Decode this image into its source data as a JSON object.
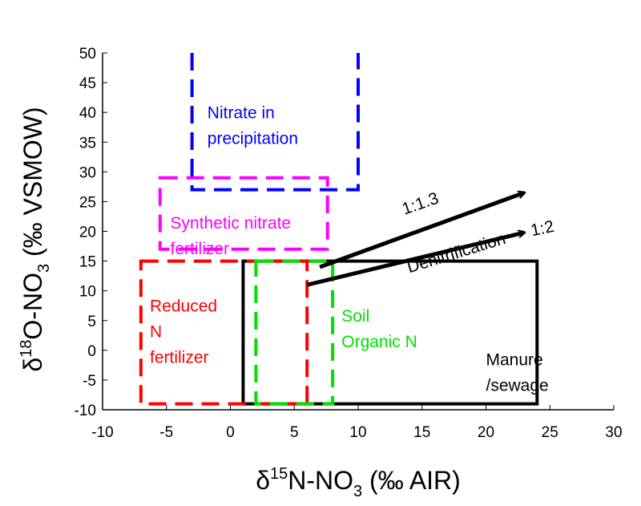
{
  "chart_data": {
    "type": "diagram-boxes",
    "xlim": [
      -10,
      30
    ],
    "ylim": [
      -10,
      50
    ],
    "x_ticks": [
      -10,
      -5,
      0,
      5,
      10,
      15,
      20,
      25,
      30
    ],
    "y_ticks": [
      -10,
      -5,
      0,
      5,
      10,
      15,
      20,
      25,
      30,
      35,
      40,
      45,
      50
    ],
    "xlabel": {
      "delta": "δ",
      "sup": "15",
      "main": "N-NO",
      "sub": "3",
      "tail": " (‰ AIR)"
    },
    "ylabel": {
      "delta": "δ",
      "sup": "18",
      "main": "O-NO",
      "sub": "3",
      "tail": " (‰ VSMOW)"
    },
    "grid": false,
    "regions": [
      {
        "name": "Manure /sewage",
        "lines": [
          "Manure",
          "/sewage"
        ],
        "x": [
          1,
          24
        ],
        "y": [
          -9,
          15
        ],
        "color": "#000000",
        "style": "solid",
        "label_at": [
          20,
          -2.5
        ]
      },
      {
        "name": "Reduced N fertilizer",
        "lines": [
          "Reduced",
          "N",
          "fertilizer"
        ],
        "x": [
          -7,
          6
        ],
        "y": [
          -9,
          15
        ],
        "color": "#ff0000",
        "style": "dashed",
        "label_at": [
          -6.3,
          6.5
        ]
      },
      {
        "name": "Soil Organic N",
        "lines": [
          "Soil",
          "Organic N"
        ],
        "x": [
          2,
          8
        ],
        "y": [
          -9,
          15
        ],
        "color": "#00e000",
        "style": "dashed",
        "label_at": [
          8.7,
          4.8
        ]
      },
      {
        "name": "Synthetic nitrate fertilizer",
        "lines": [
          "Synthetic nitrate",
          "fertilizer"
        ],
        "x": [
          -5.5,
          7.6
        ],
        "y": [
          17,
          29
        ],
        "color": "#ff00ff",
        "style": "dashed",
        "label_at": [
          -4.7,
          20.5
        ]
      },
      {
        "name": "Nitrate in precipitation",
        "lines": [
          "Nitrate in",
          "precipitation"
        ],
        "x": [
          -3,
          10
        ],
        "y": [
          27,
          50
        ],
        "color": "#0000ff",
        "style": "dashed",
        "open_top": true,
        "label_at": [
          -1.8,
          39
        ]
      }
    ],
    "arrows": [
      {
        "label": "1:1.3",
        "from": [
          7,
          14
        ],
        "to": [
          23,
          26.5
        ]
      },
      {
        "label": "1:2",
        "from": [
          6,
          11
        ],
        "to": [
          23,
          19.8
        ]
      }
    ],
    "annotation": "Denitrification"
  }
}
